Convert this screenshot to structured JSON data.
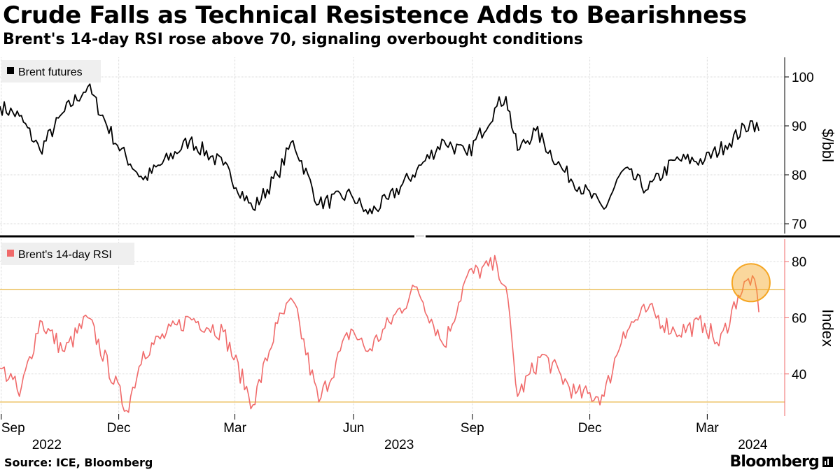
{
  "title": "Crude Falls as Technical Resistence Adds to Bearishness",
  "subtitle": "Brent's 14-day RSI rose above 70, signaling overbought conditions",
  "source": "Source: ICE, Bloomberg",
  "brand": "Bloomberg",
  "colors": {
    "price": "#000000",
    "rsi": "#f06a6a",
    "threshold": "#e8b23a",
    "highlight": "#f5a623"
  },
  "chart_data": [
    {
      "type": "line",
      "legend": "top-left",
      "series": [
        {
          "name": "Brent futures",
          "x": [
            "2022-08-31",
            "2022-09-15",
            "2022-10-01",
            "2022-10-20",
            "2022-11-07",
            "2022-11-30",
            "2022-12-20",
            "2023-01-25",
            "2023-02-20",
            "2023-03-15",
            "2023-04-03",
            "2023-04-15",
            "2023-05-05",
            "2023-05-30",
            "2023-06-12",
            "2023-06-28",
            "2023-07-20",
            "2023-08-10",
            "2023-08-28",
            "2023-09-20",
            "2023-09-27",
            "2023-10-06",
            "2023-10-20",
            "2023-11-10",
            "2023-12-12",
            "2023-12-27",
            "2024-01-15",
            "2024-02-05",
            "2024-02-28",
            "2024-03-15",
            "2024-04-05",
            "2024-04-10"
          ],
          "values": [
            94,
            92,
            85,
            93,
            98,
            86,
            79,
            87,
            82,
            73,
            80,
            87,
            74,
            76,
            72,
            75,
            81,
            87,
            84,
            94,
            96,
            85,
            89,
            81,
            73,
            81,
            77,
            83,
            83,
            86,
            91,
            89
          ]
        }
      ],
      "y_ticks": [
        "70",
        "80",
        "90",
        "100"
      ],
      "y_label": "$/bbl",
      "ylim": [
        68,
        104
      ]
    },
    {
      "type": "line",
      "legend": "top-left",
      "series": [
        {
          "name": "Brent's 14-day RSI",
          "x": [
            "2022-08-31",
            "2022-09-10",
            "2022-09-15",
            "2022-10-01",
            "2022-10-20",
            "2022-11-07",
            "2022-12-07",
            "2022-12-20",
            "2023-01-25",
            "2023-02-20",
            "2023-03-15",
            "2023-04-03",
            "2023-04-15",
            "2023-05-05",
            "2023-05-30",
            "2023-06-12",
            "2023-07-20",
            "2023-08-10",
            "2023-08-28",
            "2023-09-20",
            "2023-09-27",
            "2023-10-06",
            "2023-10-25",
            "2023-11-20",
            "2023-12-12",
            "2023-12-27",
            "2024-01-15",
            "2024-02-05",
            "2024-02-28",
            "2024-03-10",
            "2024-03-25",
            "2024-04-05",
            "2024-04-10"
          ],
          "values": [
            42,
            38,
            32,
            59,
            48,
            60,
            27,
            48,
            60,
            55,
            29,
            58,
            66,
            30,
            56,
            48,
            71,
            50,
            75,
            79,
            71,
            32,
            47,
            33,
            32,
            55,
            63,
            55,
            58,
            50,
            68,
            75,
            62
          ]
        }
      ],
      "reference_lines": [
        30,
        70
      ],
      "y_ticks": [
        "40",
        "60",
        "80"
      ],
      "y_label": "Index",
      "ylim": [
        25,
        88
      ]
    }
  ],
  "x_axis": {
    "range": [
      "2022-08-31",
      "2024-04-30"
    ],
    "ticks": [
      {
        "date": "2022-09-01",
        "label": "Sep"
      },
      {
        "date": "2022-12-01",
        "label": "Dec"
      },
      {
        "date": "2023-03-01",
        "label": "Mar"
      },
      {
        "date": "2023-06-01",
        "label": "Jun"
      },
      {
        "date": "2023-09-01",
        "label": "Sep"
      },
      {
        "date": "2023-12-01",
        "label": "Dec"
      },
      {
        "date": "2024-03-01",
        "label": "Mar"
      }
    ],
    "years": [
      {
        "date": "2022-09-01",
        "label": "2022"
      },
      {
        "date": "2023-06-01",
        "label": "2023"
      },
      {
        "date": "2024-03-01",
        "label": "2024"
      }
    ]
  },
  "annotation": {
    "date": "2024-04-05",
    "value": 70
  }
}
